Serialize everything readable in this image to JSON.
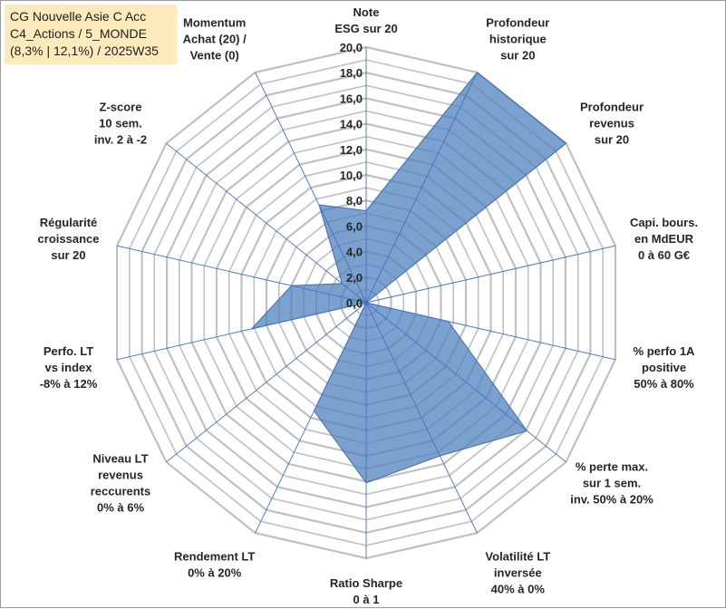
{
  "title_box": {
    "line1": "CG Nouvelle Asie C Acc",
    "line2": "C4_Actions / 5_MONDE",
    "line3": "(8,3% | 12,1%) / 2025W35"
  },
  "colors": {
    "fill": "#4f81bd",
    "fill_opacity": 0.75,
    "spoke": "#4472c4",
    "ring": "#c0c0c0",
    "title_bg": "#fdebbb"
  },
  "chart_data": {
    "type": "radar",
    "title": "",
    "rmin": 0,
    "rmax": 20,
    "tick_step": 2,
    "ticks": [
      "0,0",
      "2,0",
      "4,0",
      "6,0",
      "8,0",
      "10,0",
      "12,0",
      "14,0",
      "16,0",
      "18,0",
      "20,0"
    ],
    "grid": true,
    "axes": [
      [
        "Note",
        "ESG sur 20"
      ],
      [
        "Profondeur",
        "historique",
        "sur 20"
      ],
      [
        "Profondeur",
        "revenus",
        "sur 20"
      ],
      [
        "Capi. bours.",
        "en MdEUR",
        "0 à 60 G€"
      ],
      [
        "% perfo 1A",
        "positive",
        "50% à 80%"
      ],
      [
        "% perte max.",
        "sur 1 sem.",
        "inv. 50% à 20%"
      ],
      [
        "Volatilité LT",
        "inversée",
        "40% à 0%"
      ],
      [
        "Ratio Sharpe",
        "0 à 1"
      ],
      [
        "Rendement LT",
        "0% à 20%"
      ],
      [
        "Niveau LT",
        "revenus",
        "reccurents",
        "0% à 6%"
      ],
      [
        "Perfo. LT",
        "vs index",
        "-8% à 12%"
      ],
      [
        "Régularité",
        "croissance",
        "sur 20"
      ],
      [
        "Z-score",
        "10 sem.",
        "inv. 2 à -2"
      ],
      [
        "Momentum",
        "Achat (20) /",
        "Vente (0)"
      ]
    ],
    "series": [
      {
        "values": [
          7.2,
          20.0,
          20.0,
          0.0,
          6.6,
          16.1,
          13.3,
          14.1,
          9.4,
          0.0,
          9.2,
          6.0,
          2.4,
          8.5
        ]
      }
    ]
  }
}
